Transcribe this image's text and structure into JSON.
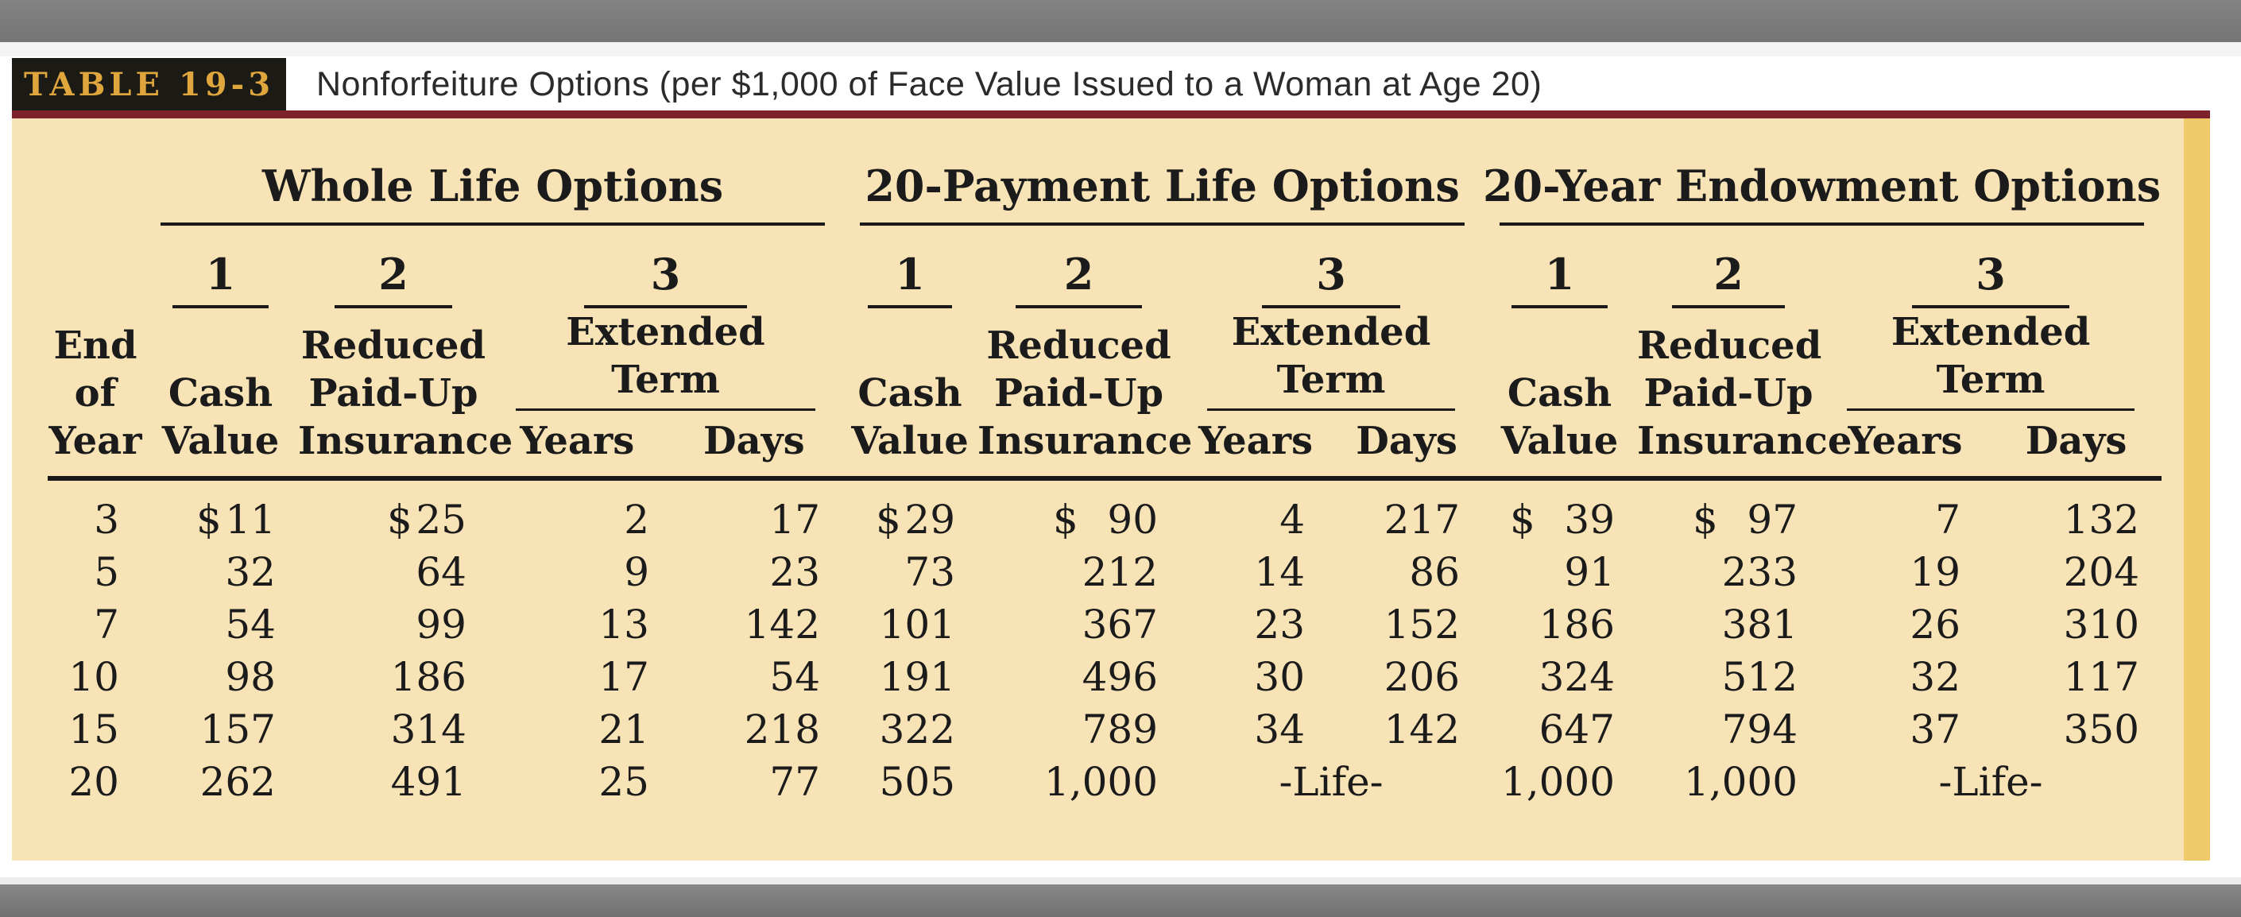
{
  "header": {
    "table_label": "TABLE 19-3",
    "title": "Nonforfeiture Options (per $1,000 of Face Value Issued to a Woman at Age 20)"
  },
  "colors": {
    "tan_background": "#f7e3b6",
    "gold_edge_bar": "#f0c96b",
    "gold_label_text": "#dea63c",
    "label_box_black": "#1b1a15",
    "maroon_rule": "#7d212b",
    "gray_band": "#7c7c7c",
    "table_text": "#1b1b1b"
  },
  "table": {
    "row_header_lines": [
      "End",
      "of",
      "Year"
    ],
    "groups": [
      {
        "title": "Whole Life Options"
      },
      {
        "title": "20-Payment Life Options"
      },
      {
        "title": "20-Year Endowment Options"
      }
    ],
    "option_numbers": [
      "1",
      "2",
      "3"
    ],
    "col_labels": {
      "cash": [
        "Cash",
        "Value"
      ],
      "reduced": [
        "Reduced",
        "Paid-Up",
        "Insurance"
      ],
      "extended": [
        "Extended",
        "Term"
      ],
      "years": "Years",
      "days": "Days"
    },
    "life_marker": "-Life-",
    "rows": [
      {
        "year": "3",
        "cells": [
          {
            "d": true,
            "v": "11"
          },
          {
            "d": true,
            "v": "25"
          },
          "2",
          "17",
          {
            "d": true,
            "v": "29"
          },
          {
            "d": true,
            "v": "90"
          },
          "4",
          "217",
          {
            "d": true,
            "v": "39"
          },
          {
            "d": true,
            "v": "97"
          },
          "7",
          "132"
        ]
      },
      {
        "year": "5",
        "cells": [
          "32",
          "64",
          "9",
          "23",
          "73",
          "212",
          "14",
          "86",
          "91",
          "233",
          "19",
          "204"
        ]
      },
      {
        "year": "7",
        "cells": [
          "54",
          "99",
          "13",
          "142",
          "101",
          "367",
          "23",
          "152",
          "186",
          "381",
          "26",
          "310"
        ]
      },
      {
        "year": "10",
        "cells": [
          "98",
          "186",
          "17",
          "54",
          "191",
          "496",
          "30",
          "206",
          "324",
          "512",
          "32",
          "117"
        ]
      },
      {
        "year": "15",
        "cells": [
          "157",
          "314",
          "21",
          "218",
          "322",
          "789",
          "34",
          "142",
          "647",
          "794",
          "37",
          "350"
        ]
      },
      {
        "year": "20",
        "cells": [
          "262",
          "491",
          "25",
          "77",
          "505",
          "1,000",
          {
            "life": true
          },
          "1,000",
          "1,000",
          {
            "life": true
          }
        ]
      }
    ]
  }
}
